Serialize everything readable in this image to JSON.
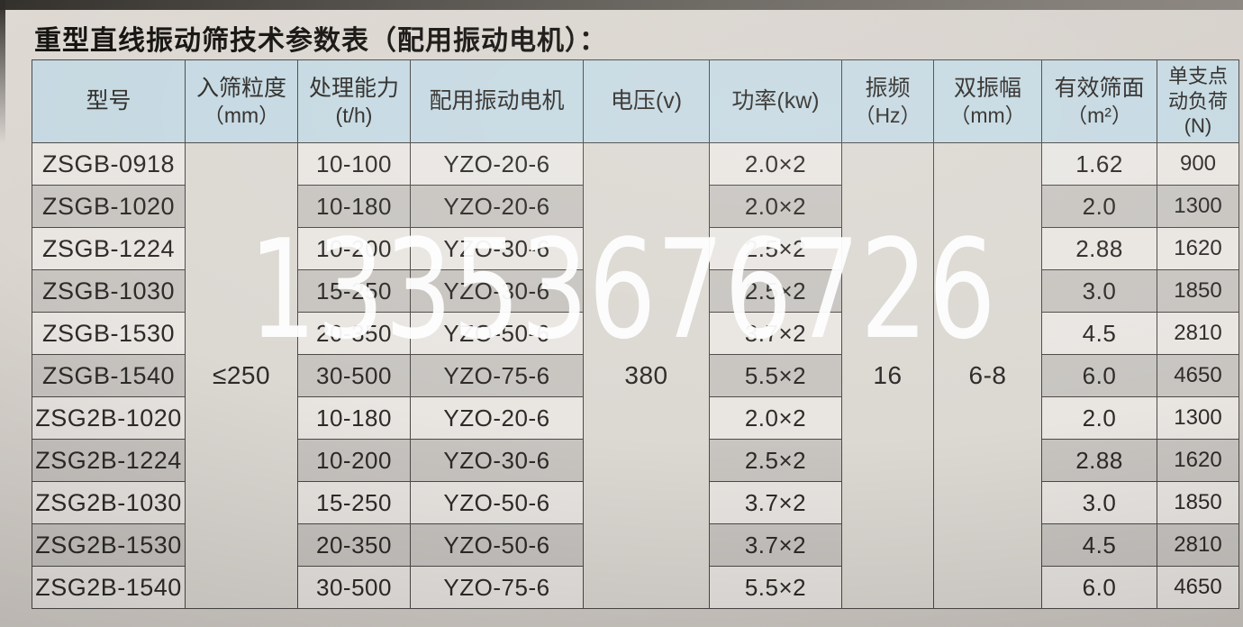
{
  "title": "重型直线振动筛技术参数表（配用振动电机）：",
  "watermark": "13353676726",
  "table": {
    "headers": [
      {
        "key": "model",
        "line1": "型号",
        "line2": ""
      },
      {
        "key": "feed",
        "line1": "入筛粒度",
        "line2": "（mm）"
      },
      {
        "key": "capacity",
        "line1": "处理能力",
        "line2": "(t/h)"
      },
      {
        "key": "motor",
        "line1": "配用振动电机",
        "line2": ""
      },
      {
        "key": "voltage",
        "line1": "电压(v)",
        "line2": ""
      },
      {
        "key": "power",
        "line1": "功率(kw)",
        "line2": ""
      },
      {
        "key": "freq",
        "line1": "振频",
        "line2": "（Hz）"
      },
      {
        "key": "amp",
        "line1": "双振幅",
        "line2": "（mm）"
      },
      {
        "key": "area",
        "line1": "有效筛面",
        "line2": "（m²）"
      },
      {
        "key": "load",
        "line1": "单支点",
        "line2": "动负荷(N)"
      }
    ],
    "merged": {
      "feed": "≤250",
      "voltage": "380",
      "freq": "16",
      "amp": "6-8"
    },
    "rows": [
      {
        "model": "ZSGB-0918",
        "capacity": "10-100",
        "motor": "YZO-20-6",
        "power": "2.0×2",
        "area": "1.62",
        "load": "900"
      },
      {
        "model": "ZSGB-1020",
        "capacity": "10-180",
        "motor": "YZO-20-6",
        "power": "2.0×2",
        "area": "2.0",
        "load": "1300"
      },
      {
        "model": "ZSGB-1224",
        "capacity": "10-200",
        "motor": "YZO-30-6",
        "power": "2.5×2",
        "area": "2.88",
        "load": "1620"
      },
      {
        "model": "ZSGB-1030",
        "capacity": "15-250",
        "motor": "YZO-30-6",
        "power": "2.5×2",
        "area": "3.0",
        "load": "1850"
      },
      {
        "model": "ZSGB-1530",
        "capacity": "20-350",
        "motor": "YZO-50-6",
        "power": "3.7×2",
        "area": "4.5",
        "load": "2810"
      },
      {
        "model": "ZSGB-1540",
        "capacity": "30-500",
        "motor": "YZO-75-6",
        "power": "5.5×2",
        "area": "6.0",
        "load": "4650"
      },
      {
        "model": "ZSG2B-1020",
        "capacity": "10-180",
        "motor": "YZO-20-6",
        "power": "2.0×2",
        "area": "2.0",
        "load": "1300"
      },
      {
        "model": "ZSG2B-1224",
        "capacity": "10-200",
        "motor": "YZO-30-6",
        "power": "2.5×2",
        "area": "2.88",
        "load": "1620"
      },
      {
        "model": "ZSG2B-1030",
        "capacity": "15-250",
        "motor": "YZO-50-6",
        "power": "3.7×2",
        "area": "3.0",
        "load": "1850"
      },
      {
        "model": "ZSG2B-1530",
        "capacity": "20-350",
        "motor": "YZO-50-6",
        "power": "3.7×2",
        "area": "4.5",
        "load": "2810"
      },
      {
        "model": "ZSG2B-1540",
        "capacity": "30-500",
        "motor": "YZO-75-6",
        "power": "5.5×2",
        "area": "6.0",
        "load": "4650"
      }
    ]
  },
  "colors": {
    "header_bg": "#c6d9e2",
    "row_light": "#e9e6e2",
    "row_dark": "#c8c5c1",
    "merged_bg": "#dcd8d2",
    "border": "#4c4947",
    "watermark": "#ffffff",
    "paper": "#d8d3cd"
  }
}
